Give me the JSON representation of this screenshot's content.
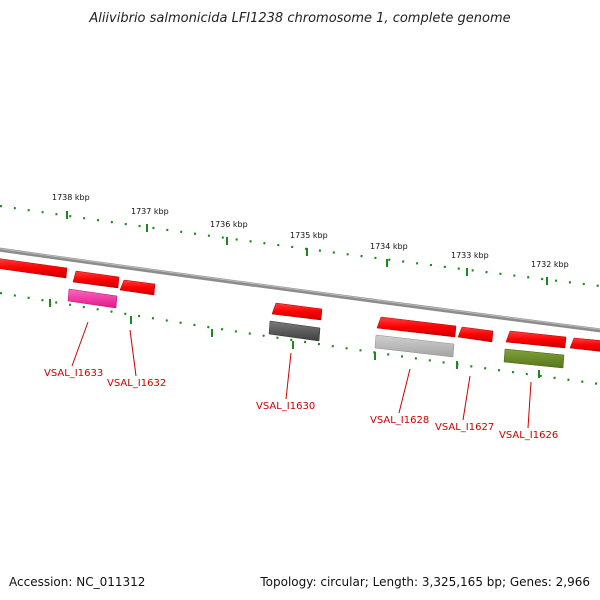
{
  "title": "Aliivibrio salmonicida LFI1238 chromosome 1, complete genome",
  "scale_labels": [
    "1738 kbp",
    "1737 kbp",
    "1736 kbp",
    "1735 kbp",
    "1734 kbp",
    "1733 kbp",
    "1732 kbp"
  ],
  "gene_labels": [
    "VSAL_I1633",
    "VSAL_I1632",
    "VSAL_I1630",
    "VSAL_I1628",
    "VSAL_I1627",
    "VSAL_I1626"
  ],
  "footer": {
    "accession": "Accession: NC_011312",
    "summary": "Topology: circular; Length: 3,325,165 bp; Genes: 2,966"
  },
  "colors": {
    "backbone": "#8c8c8c",
    "tick": "#1a8a1a",
    "cds": "#ff0000",
    "label": "#cc0000",
    "magenta_feature": "#ff2ea0",
    "dark_gray_feature": "#5a5a5a",
    "light_gray_feature": "#b4b4b4",
    "olive_feature": "#6b8e23"
  }
}
